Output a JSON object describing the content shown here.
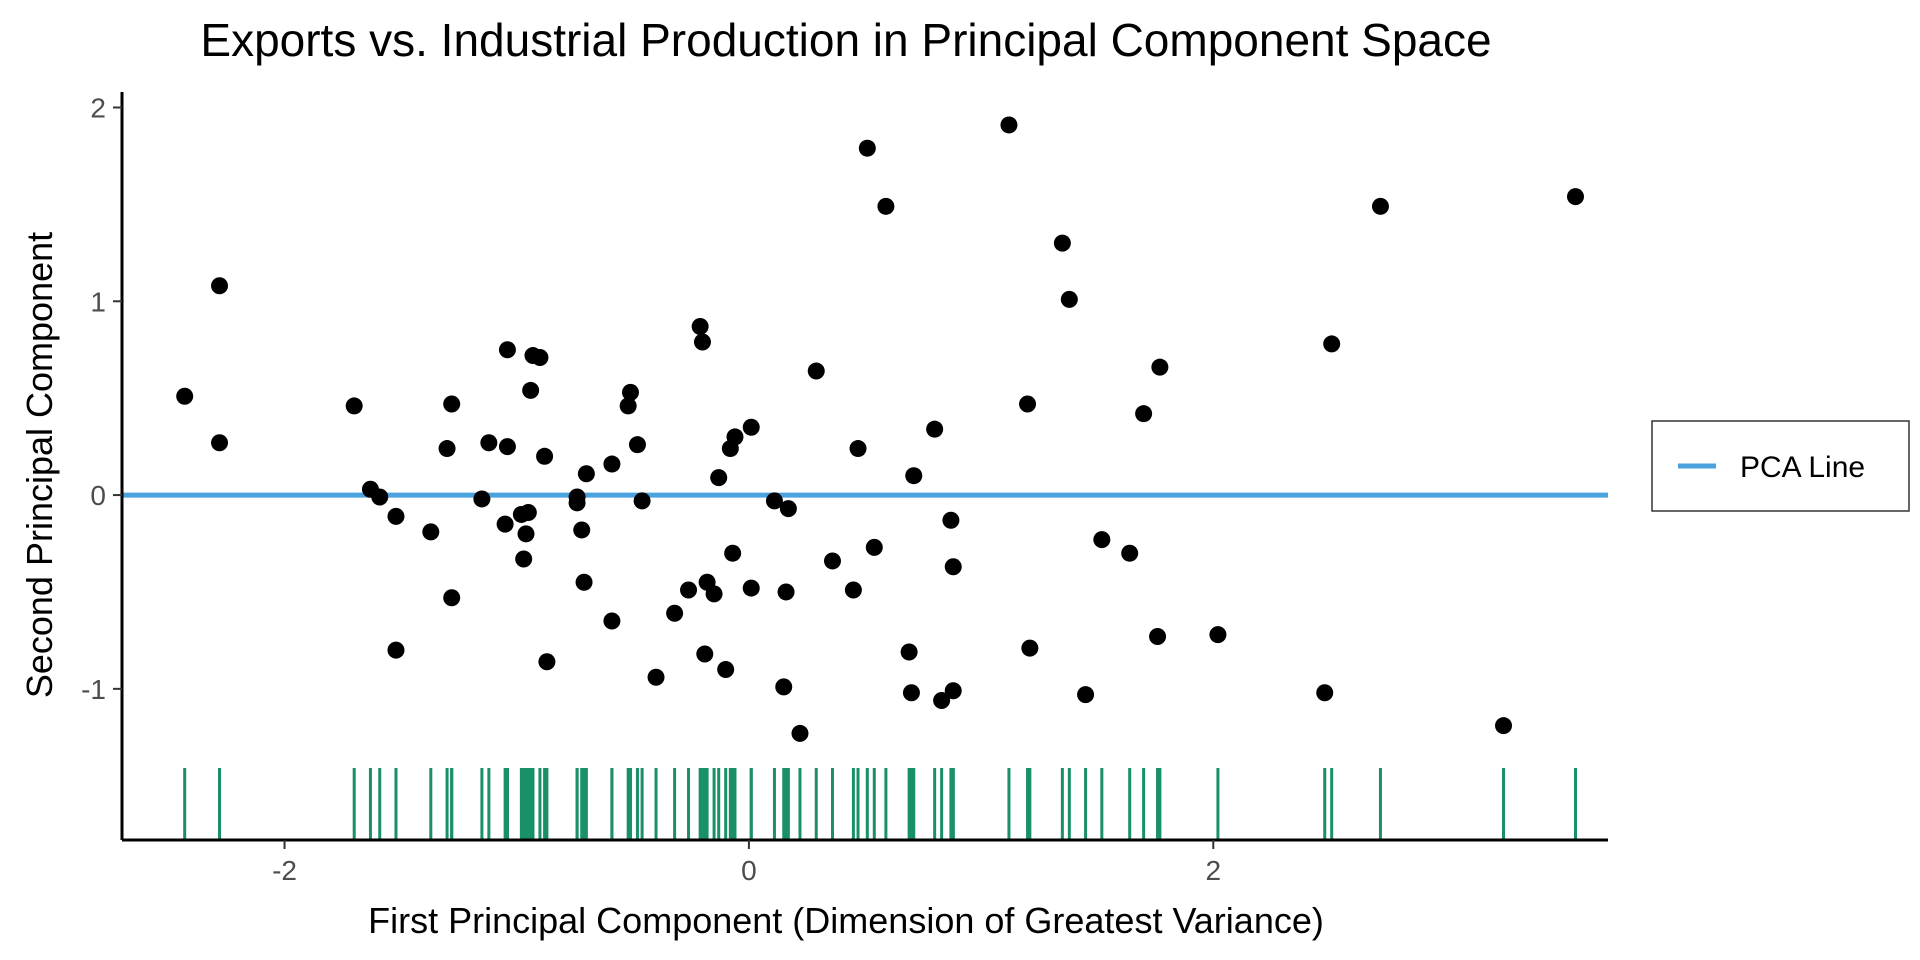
{
  "chart_data": {
    "type": "scatter",
    "title": "Exports vs. Industrial Production in Principal Component Space",
    "xlabel": "First Principal Component (Dimension of Greatest Variance)",
    "ylabel": "Second Principal Component",
    "xlim": [
      -2.7,
      3.7
    ],
    "ylim": [
      -1.78,
      2.08
    ],
    "x_ticks": [
      -2,
      0,
      2
    ],
    "y_ticks": [
      -1,
      0,
      1,
      2
    ],
    "x_tick_labels": [
      "-2",
      "0",
      "2"
    ],
    "y_tick_labels": [
      "-1",
      "0",
      "1",
      "2"
    ],
    "grid": false,
    "rug": "bottom",
    "legend": {
      "position": "right",
      "entries": [
        "PCA Line"
      ]
    },
    "reference_line": {
      "name": "PCA Line",
      "y": 0
    },
    "colors": {
      "points": "#000000",
      "pca_line": "#4aa3df",
      "rug": "#1a9068",
      "axis": "#000000"
    },
    "points": [
      {
        "x": -2.43,
        "y": 0.51
      },
      {
        "x": -2.28,
        "y": 1.08
      },
      {
        "x": -2.28,
        "y": 0.27
      },
      {
        "x": -1.7,
        "y": 0.46
      },
      {
        "x": -1.63,
        "y": 0.03
      },
      {
        "x": -1.59,
        "y": -0.01
      },
      {
        "x": -1.52,
        "y": -0.11
      },
      {
        "x": -1.52,
        "y": -0.8
      },
      {
        "x": -1.37,
        "y": -0.19
      },
      {
        "x": -1.3,
        "y": 0.24
      },
      {
        "x": -1.28,
        "y": 0.47
      },
      {
        "x": -1.28,
        "y": -0.53
      },
      {
        "x": -1.15,
        "y": -0.02
      },
      {
        "x": -1.12,
        "y": 0.27
      },
      {
        "x": -1.05,
        "y": -0.15
      },
      {
        "x": -1.04,
        "y": 0.75
      },
      {
        "x": -1.04,
        "y": 0.25
      },
      {
        "x": -0.98,
        "y": -0.1
      },
      {
        "x": -0.97,
        "y": -0.33
      },
      {
        "x": -0.96,
        "y": -0.2
      },
      {
        "x": -0.95,
        "y": -0.09
      },
      {
        "x": -0.94,
        "y": 0.54
      },
      {
        "x": -0.93,
        "y": 0.72
      },
      {
        "x": -0.9,
        "y": 0.71
      },
      {
        "x": -0.88,
        "y": 0.2
      },
      {
        "x": -0.87,
        "y": -0.86
      },
      {
        "x": -0.74,
        "y": -0.01
      },
      {
        "x": -0.74,
        "y": -0.04
      },
      {
        "x": -0.72,
        "y": -0.18
      },
      {
        "x": -0.71,
        "y": -0.45
      },
      {
        "x": -0.7,
        "y": 0.11
      },
      {
        "x": -0.59,
        "y": 0.16
      },
      {
        "x": -0.59,
        "y": -0.65
      },
      {
        "x": -0.52,
        "y": 0.46
      },
      {
        "x": -0.51,
        "y": 0.53
      },
      {
        "x": -0.48,
        "y": 0.26
      },
      {
        "x": -0.46,
        "y": -0.03
      },
      {
        "x": -0.4,
        "y": -0.94
      },
      {
        "x": -0.32,
        "y": -0.61
      },
      {
        "x": -0.26,
        "y": -0.49
      },
      {
        "x": -0.21,
        "y": 0.87
      },
      {
        "x": -0.2,
        "y": 0.79
      },
      {
        "x": -0.19,
        "y": -0.82
      },
      {
        "x": -0.18,
        "y": -0.45
      },
      {
        "x": -0.15,
        "y": -0.51
      },
      {
        "x": -0.13,
        "y": 0.09
      },
      {
        "x": -0.1,
        "y": -0.9
      },
      {
        "x": -0.08,
        "y": 0.24
      },
      {
        "x": -0.07,
        "y": -0.3
      },
      {
        "x": -0.06,
        "y": 0.3
      },
      {
        "x": 0.01,
        "y": 0.35
      },
      {
        "x": 0.01,
        "y": -0.48
      },
      {
        "x": 0.11,
        "y": -0.03
      },
      {
        "x": 0.15,
        "y": -0.99
      },
      {
        "x": 0.16,
        "y": -0.5
      },
      {
        "x": 0.17,
        "y": -0.07
      },
      {
        "x": 0.22,
        "y": -1.23
      },
      {
        "x": 0.29,
        "y": 0.64
      },
      {
        "x": 0.36,
        "y": -0.34
      },
      {
        "x": 0.45,
        "y": -0.49
      },
      {
        "x": 0.47,
        "y": 0.24
      },
      {
        "x": 0.51,
        "y": 1.79
      },
      {
        "x": 0.54,
        "y": -0.27
      },
      {
        "x": 0.59,
        "y": 1.49
      },
      {
        "x": 0.69,
        "y": -0.81
      },
      {
        "x": 0.7,
        "y": -1.02
      },
      {
        "x": 0.71,
        "y": 0.1
      },
      {
        "x": 0.8,
        "y": 0.34
      },
      {
        "x": 0.83,
        "y": -1.06
      },
      {
        "x": 0.87,
        "y": -0.13
      },
      {
        "x": 0.88,
        "y": -1.01
      },
      {
        "x": 0.88,
        "y": -0.37
      },
      {
        "x": 1.12,
        "y": 1.91
      },
      {
        "x": 1.2,
        "y": 0.47
      },
      {
        "x": 1.21,
        "y": -0.79
      },
      {
        "x": 1.35,
        "y": 1.3
      },
      {
        "x": 1.38,
        "y": 1.01
      },
      {
        "x": 1.45,
        "y": -1.03
      },
      {
        "x": 1.52,
        "y": -0.23
      },
      {
        "x": 1.64,
        "y": -0.3
      },
      {
        "x": 1.7,
        "y": 0.42
      },
      {
        "x": 1.76,
        "y": -0.73
      },
      {
        "x": 1.77,
        "y": 0.66
      },
      {
        "x": 2.02,
        "y": -0.72
      },
      {
        "x": 2.48,
        "y": -1.02
      },
      {
        "x": 2.51,
        "y": 0.78
      },
      {
        "x": 2.72,
        "y": 1.49
      },
      {
        "x": 3.25,
        "y": -1.19
      },
      {
        "x": 3.56,
        "y": 1.54
      }
    ]
  }
}
